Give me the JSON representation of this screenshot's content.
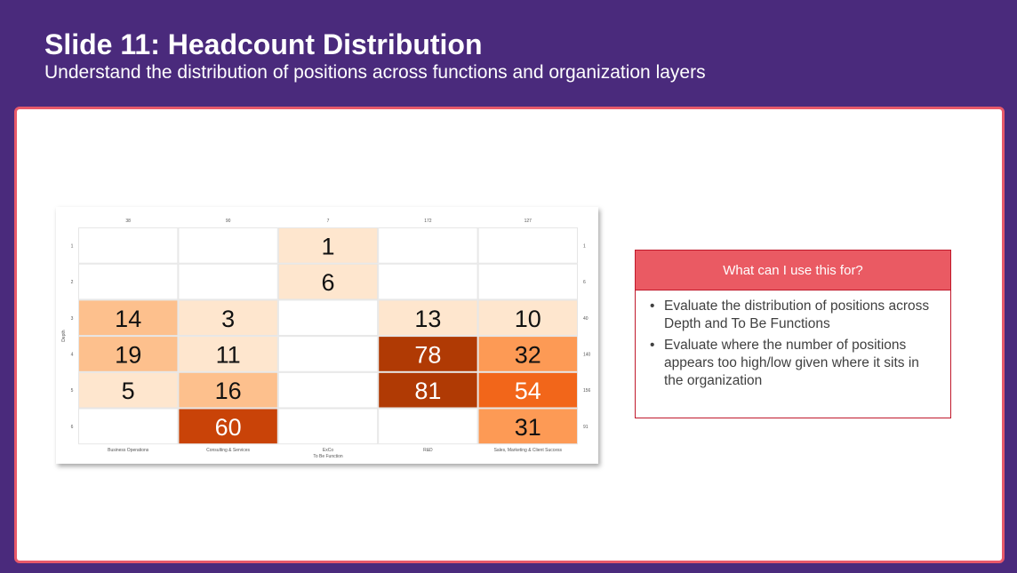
{
  "slide": {
    "title": "Slide 11: Headcount Distribution",
    "subtitle": "Understand the distribution of positions across functions and organization layers"
  },
  "info_box": {
    "header": "What can I use this for?",
    "bullets": [
      "Evaluate the distribution of positions across Depth and To Be Functions",
      "Evaluate where the number of positions appears too high/low given where it sits in the organization"
    ]
  },
  "chart_data": {
    "type": "heatmap",
    "title": "",
    "xlabel": "To Be Function",
    "ylabel": "Depth",
    "columns": [
      "Business Operations",
      "Consulting & Services",
      "ExCo",
      "R&D",
      "Sales, Marketing & Client Success"
    ],
    "column_totals": [
      "38",
      "90",
      "7",
      "172",
      "127"
    ],
    "rows": [
      "1",
      "2",
      "3",
      "4",
      "5",
      "6"
    ],
    "row_totals": [
      "1",
      "6",
      "40",
      "140",
      "156",
      "91"
    ],
    "values": [
      [
        null,
        null,
        1,
        null,
        null
      ],
      [
        null,
        null,
        6,
        null,
        null
      ],
      [
        14,
        3,
        null,
        13,
        10
      ],
      [
        19,
        11,
        null,
        78,
        32
      ],
      [
        5,
        16,
        null,
        81,
        54
      ],
      [
        null,
        60,
        null,
        null,
        31
      ]
    ],
    "color_scale": [
      "#fee6ce",
      "#fdc08d",
      "#fd9a55",
      "#f2661a",
      "#c94308",
      "#b03a04"
    ]
  }
}
